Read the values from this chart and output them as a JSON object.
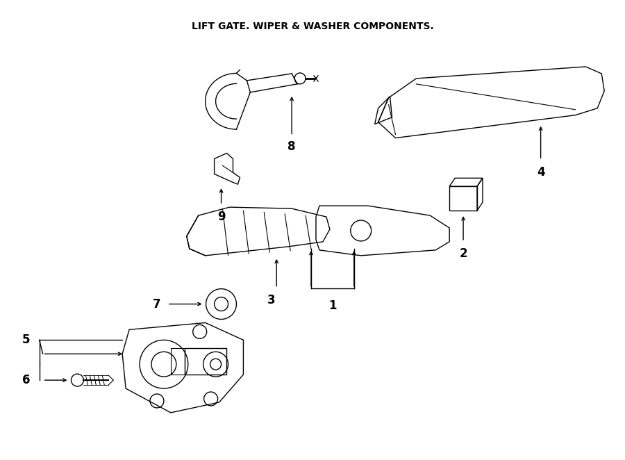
{
  "title": "LIFT GATE. WIPER & WASHER COMPONENTS.",
  "bg_color": "#ffffff",
  "line_color": "#000000",
  "text_color": "#000000",
  "fig_width": 9.0,
  "fig_height": 6.62,
  "dpi": 100,
  "lw": 1.0,
  "arrow_lw": 1.0,
  "label_fontsize": 12,
  "title_fontsize": 10,
  "xlim": [
    0,
    900
  ],
  "ylim": [
    0,
    662
  ]
}
